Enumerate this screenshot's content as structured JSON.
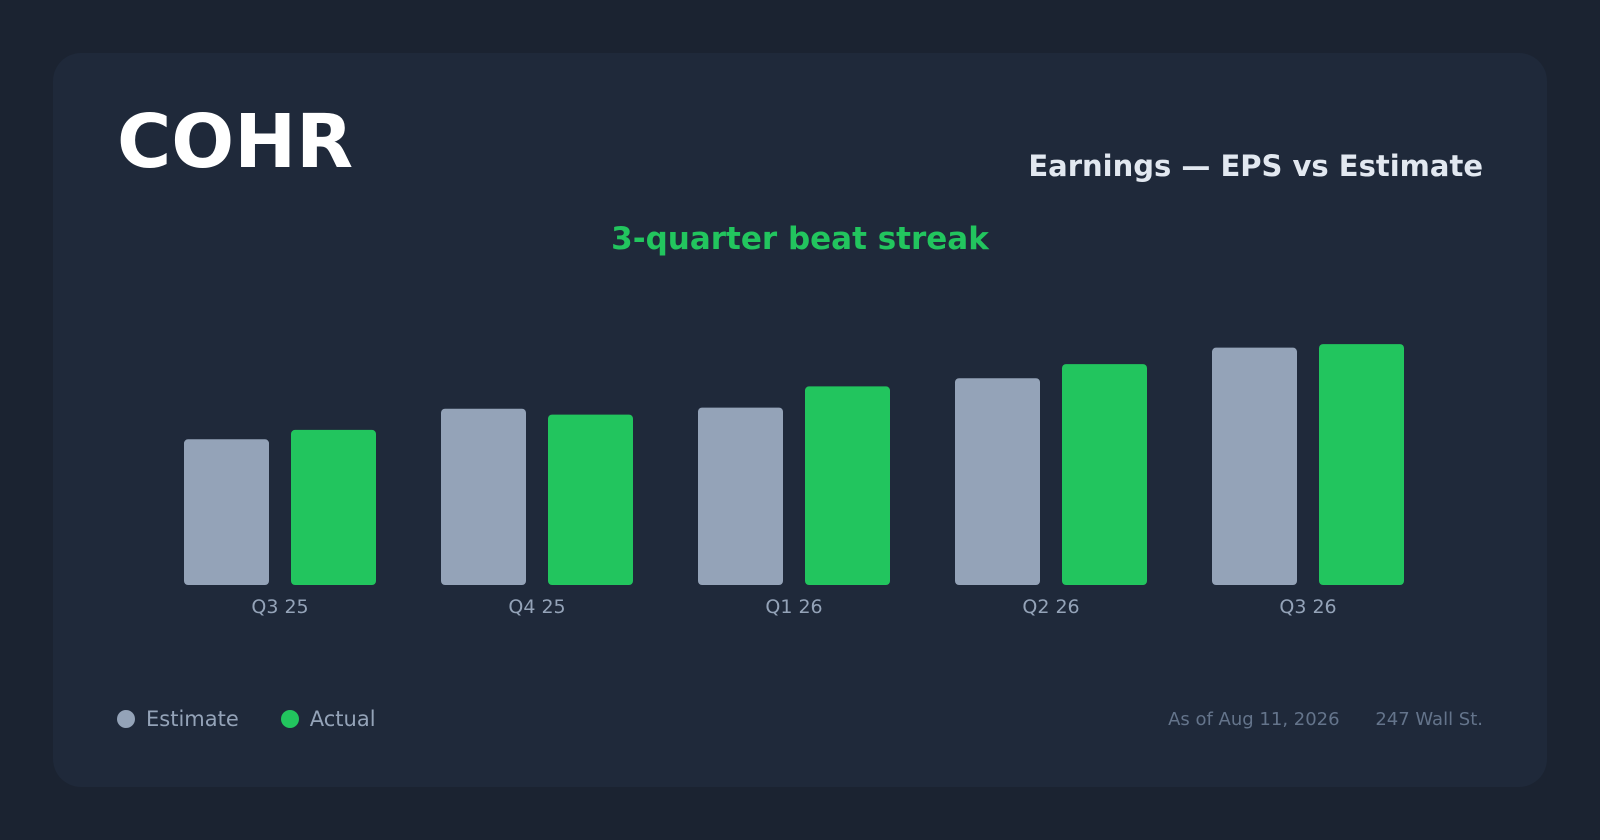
{
  "header": {
    "ticker": "COHR",
    "subtitle": "Earnings — EPS vs Estimate",
    "streak": "3-quarter beat streak"
  },
  "legend": {
    "estimate_label": "Estimate",
    "actual_label": "Actual"
  },
  "footer": {
    "as_of": "As of Aug 11, 2026",
    "source": "247 Wall St."
  },
  "colors": {
    "estimate": "#94a3b8",
    "actual": "#22c55e"
  },
  "chart_data": {
    "type": "bar",
    "categories": [
      "Q3 25",
      "Q4 25",
      "Q1 26",
      "Q2 26",
      "Q3 26"
    ],
    "series": [
      {
        "name": "Estimate",
        "values": [
          0.62,
          0.75,
          0.755,
          0.88,
          1.01
        ]
      },
      {
        "name": "Actual",
        "values": [
          0.66,
          0.725,
          0.845,
          0.94,
          1.025
        ]
      }
    ],
    "ylim": [
      0,
      1.2
    ],
    "grid": false,
    "legend_position": "bottom-left"
  }
}
